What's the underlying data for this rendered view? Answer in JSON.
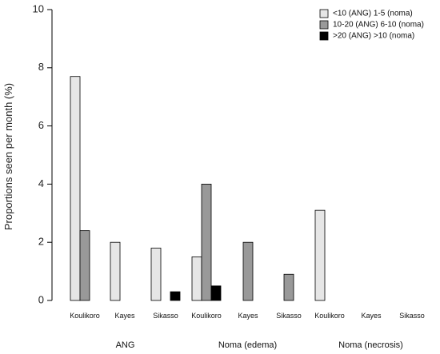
{
  "chart_data": {
    "type": "bar",
    "ylabel": "Proportions seen per month (%)",
    "ylim": [
      0,
      10
    ],
    "yticks": [
      0,
      2,
      4,
      6,
      8,
      10
    ],
    "legend_position": "top-right",
    "series": [
      {
        "name": "<10 (ANG) 1-5 (noma)",
        "color": "#e6e6e6"
      },
      {
        "name": "10-20 (ANG) 6-10 (noma)",
        "color": "#999999"
      },
      {
        "name": ">20 (ANG) >10 (noma)",
        "color": "#000000"
      }
    ],
    "groups": [
      {
        "label": "ANG",
        "subgroups": [
          {
            "label": "Koulikoro",
            "values": [
              7.7,
              2.4,
              0
            ]
          },
          {
            "label": "Kayes",
            "values": [
              2.0,
              0,
              0
            ]
          },
          {
            "label": "Sikasso",
            "values": [
              1.8,
              0,
              0.3
            ]
          }
        ]
      },
      {
        "label": "Noma (edema)",
        "subgroups": [
          {
            "label": "Koulikoro",
            "values": [
              1.5,
              4.0,
              0.5
            ]
          },
          {
            "label": "Kayes",
            "values": [
              0,
              2.0,
              0
            ]
          },
          {
            "label": "Sikasso",
            "values": [
              0,
              0.9,
              0
            ]
          }
        ]
      },
      {
        "label": "Noma (necrosis)",
        "subgroups": [
          {
            "label": "Koulikoro",
            "values": [
              3.1,
              0,
              0
            ]
          },
          {
            "label": "Kayes",
            "values": [
              0,
              0,
              0
            ]
          },
          {
            "label": "Sikasso",
            "values": [
              0,
              0,
              0
            ]
          }
        ]
      }
    ]
  }
}
